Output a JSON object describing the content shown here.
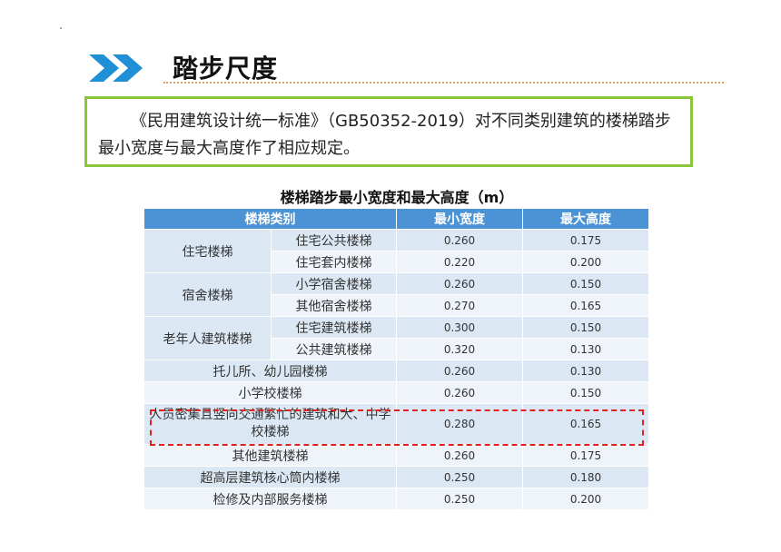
{
  "title": "踏步尺度",
  "intro": "《民用建筑设计统一标准》（GB50352-2019）对不同类别建筑的楼梯踏步最小宽度与最大高度作了相应规定。",
  "table": {
    "caption": "楼梯踏步最小宽度和最大高度（m）",
    "headers": [
      "楼梯类别",
      "最小宽度",
      "最大高度"
    ],
    "groups": [
      {
        "category": "住宅楼梯",
        "rows": [
          {
            "sub": "住宅公共楼梯",
            "min_width": "0.260",
            "max_height": "0.175"
          },
          {
            "sub": "住宅套内楼梯",
            "min_width": "0.220",
            "max_height": "0.200"
          }
        ]
      },
      {
        "category": "宿舍楼梯",
        "rows": [
          {
            "sub": "小学宿舍楼梯",
            "min_width": "0.260",
            "max_height": "0.150"
          },
          {
            "sub": "其他宿舍楼梯",
            "min_width": "0.270",
            "max_height": "0.165"
          }
        ]
      },
      {
        "category": "老年人建筑楼梯",
        "rows": [
          {
            "sub": "住宅建筑楼梯",
            "min_width": "0.300",
            "max_height": "0.150"
          },
          {
            "sub": "公共建筑楼梯",
            "min_width": "0.320",
            "max_height": "0.130"
          }
        ]
      }
    ],
    "single_rows": [
      {
        "category": "托儿所、幼儿园楼梯",
        "min_width": "0.260",
        "max_height": "0.130"
      },
      {
        "category": "小学校楼梯",
        "min_width": "0.260",
        "max_height": "0.150"
      },
      {
        "category": "人员密集且竖向交通繁忙的建筑和大、中学校楼梯",
        "min_width": "0.280",
        "max_height": "0.165"
      },
      {
        "category": "其他建筑楼梯",
        "min_width": "0.260",
        "max_height": "0.175"
      },
      {
        "category": "超高层建筑核心筒内楼梯",
        "min_width": "0.250",
        "max_height": "0.180"
      },
      {
        "category": "检修及内部服务楼梯",
        "min_width": "0.250",
        "max_height": "0.200"
      }
    ]
  },
  "colors": {
    "header_blue": "#4b93d4",
    "row_light": "#dbe8f4",
    "row_lighter": "#eef4fa",
    "box_green": "#8cc63f",
    "highlight_red": "#e02020",
    "chevron_blue": "#1f8fd6"
  }
}
